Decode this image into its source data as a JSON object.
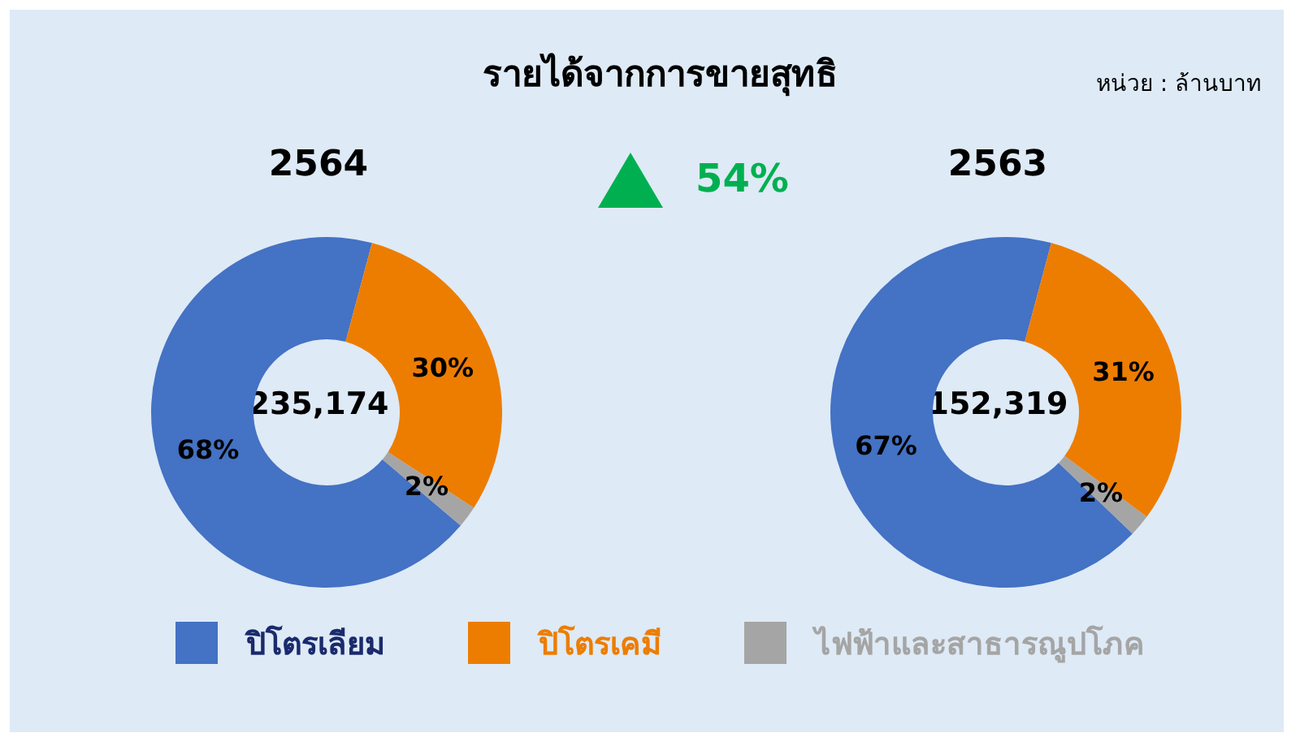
{
  "chart_data": [
    {
      "type": "other",
      "title": "รายได้จากการขายสุทธิ",
      "annotations": [
        "หน่วย : ล้านบาท",
        "54%"
      ]
    },
    {
      "type": "donut",
      "title": "2564",
      "categories": [
        "ปิโตรเลียม",
        "ปิโตรเคมี",
        "ไฟฟ้าและสาธารณูปโภค"
      ],
      "values": [
        68,
        30,
        2
      ],
      "colors": [
        "#4472c4",
        "#ed7d00",
        "#a5a5a5"
      ],
      "annotations": [
        "235,174"
      ],
      "value_labels": [
        "68%",
        "30%",
        "2%"
      ],
      "legend": "bottom"
    },
    {
      "type": "donut",
      "title": "2563",
      "categories": [
        null,
        null,
        null
      ],
      "values": [
        67,
        31,
        2
      ],
      "colors": [
        "#4472c4",
        "#ed7d00",
        "#a5a5a5"
      ],
      "annotations": [
        "152,319"
      ],
      "value_labels": [
        "67%",
        "31%",
        "2%"
      ]
    }
  ]
}
